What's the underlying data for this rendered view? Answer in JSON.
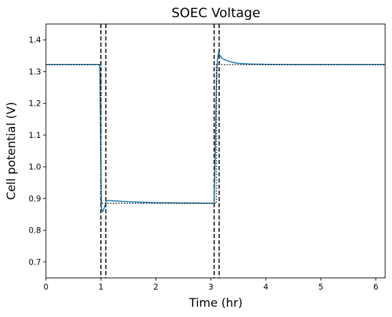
{
  "chart_data": {
    "type": "line",
    "title": "SOEC Voltage",
    "xlabel": "Time (hr)",
    "ylabel": "Cell potential (V)",
    "xlim": [
      0,
      6.17
    ],
    "ylim": [
      0.65,
      1.45
    ],
    "xticks": [
      0,
      1,
      2,
      3,
      4,
      5,
      6
    ],
    "yticks": [
      0.7,
      0.8,
      0.9,
      1.0,
      1.1,
      1.2,
      1.3,
      1.4
    ],
    "xtick_labels": [
      "0",
      "1",
      "2",
      "3",
      "4",
      "5",
      "6"
    ],
    "ytick_labels": [
      "0.7",
      "0.8",
      "0.9",
      "1.0",
      "1.1",
      "1.2",
      "1.3",
      "1.4"
    ],
    "grid": false,
    "legend": "none",
    "series": [
      {
        "style": "solid",
        "color": "#1f77b4",
        "x": [
          0,
          0.5,
          0.98,
          1.0,
          1.01,
          1.03,
          1.06,
          1.09,
          1.1,
          1.15,
          1.2,
          1.3,
          1.5,
          1.8,
          2.0,
          2.5,
          3.0,
          3.06,
          3.08,
          3.1,
          3.12,
          3.14,
          3.16,
          3.2,
          3.3,
          3.4,
          3.5,
          3.7,
          4.0,
          4.5,
          5.0,
          6.17
        ],
        "y": [
          1.322,
          1.322,
          1.322,
          1.0,
          0.87,
          0.858,
          0.87,
          0.886,
          0.893,
          0.894,
          0.893,
          0.892,
          0.89,
          0.888,
          0.887,
          0.886,
          0.885,
          0.885,
          1.05,
          1.25,
          1.34,
          1.36,
          1.352,
          1.342,
          1.334,
          1.329,
          1.326,
          1.324,
          1.323,
          1.322,
          1.322,
          1.322
        ]
      },
      {
        "style": "dotted",
        "color": "#000000",
        "x": [
          0,
          1.0,
          1.0,
          3.1,
          3.1,
          6.17
        ],
        "y": [
          1.322,
          1.322,
          0.885,
          0.885,
          1.322,
          1.322
        ]
      }
    ],
    "vlines": [
      {
        "x": 1.0,
        "style": "dashed",
        "color": "#000000"
      },
      {
        "x": 1.09,
        "style": "dashed",
        "color": "#000000"
      },
      {
        "x": 3.06,
        "style": "dashed",
        "color": "#000000"
      },
      {
        "x": 3.15,
        "style": "dashed",
        "color": "#000000"
      }
    ]
  }
}
